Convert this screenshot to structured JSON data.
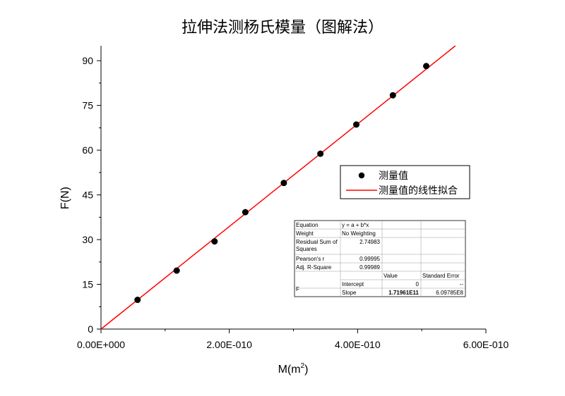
{
  "chart_data": {
    "type": "scatter",
    "title": "拉伸法测杨氏模量（图解法）",
    "xlabel": "M(m",
    "xlabel_sup": "2",
    "xlabel_close": ")",
    "ylabel": "F(N)",
    "xlim": [
      0,
      6e-10
    ],
    "ylim": [
      0,
      95
    ],
    "x_ticks": [
      0,
      2e-10,
      4e-10,
      6e-10
    ],
    "x_tick_labels": [
      "0.00E+000",
      "2.00E-010",
      "4.00E-010",
      "6.00E-010"
    ],
    "y_ticks": [
      0,
      15,
      30,
      45,
      60,
      75,
      90
    ],
    "y_tick_labels": [
      "0",
      "15",
      "30",
      "45",
      "60",
      "75",
      "90"
    ],
    "legend_position": "right-middle",
    "series": [
      {
        "name": "测量值",
        "type": "scatter",
        "color": "#000000",
        "x": [
          5.7e-11,
          1.18e-10,
          1.77e-10,
          2.25e-10,
          2.85e-10,
          3.42e-10,
          3.98e-10,
          4.55e-10,
          5.07e-10
        ],
        "y": [
          9.8,
          19.6,
          29.4,
          39.2,
          49.0,
          58.8,
          68.6,
          78.4,
          88.2
        ]
      },
      {
        "name": "测量值的线性拟合",
        "type": "line",
        "color": "#ff0000",
        "intercept": 0,
        "slope": 171961000000.0
      }
    ],
    "stats_table": {
      "rows": [
        [
          "Equation",
          "y = a + b*x",
          "",
          ""
        ],
        [
          "Weight",
          "No Weighting",
          "",
          ""
        ],
        [
          "Residual Sum of\nSquares",
          "2.74983",
          "",
          ""
        ],
        [
          "Pearson's r",
          "0.99995",
          "",
          ""
        ],
        [
          "Adj. R-Square",
          "0.99989",
          "",
          ""
        ],
        [
          "",
          "",
          "Value",
          "Standard Error"
        ],
        [
          "F",
          "Intercept",
          "0",
          "--"
        ],
        [
          "",
          "Slope",
          "1.71961E11",
          "6.09785E8"
        ]
      ]
    }
  }
}
